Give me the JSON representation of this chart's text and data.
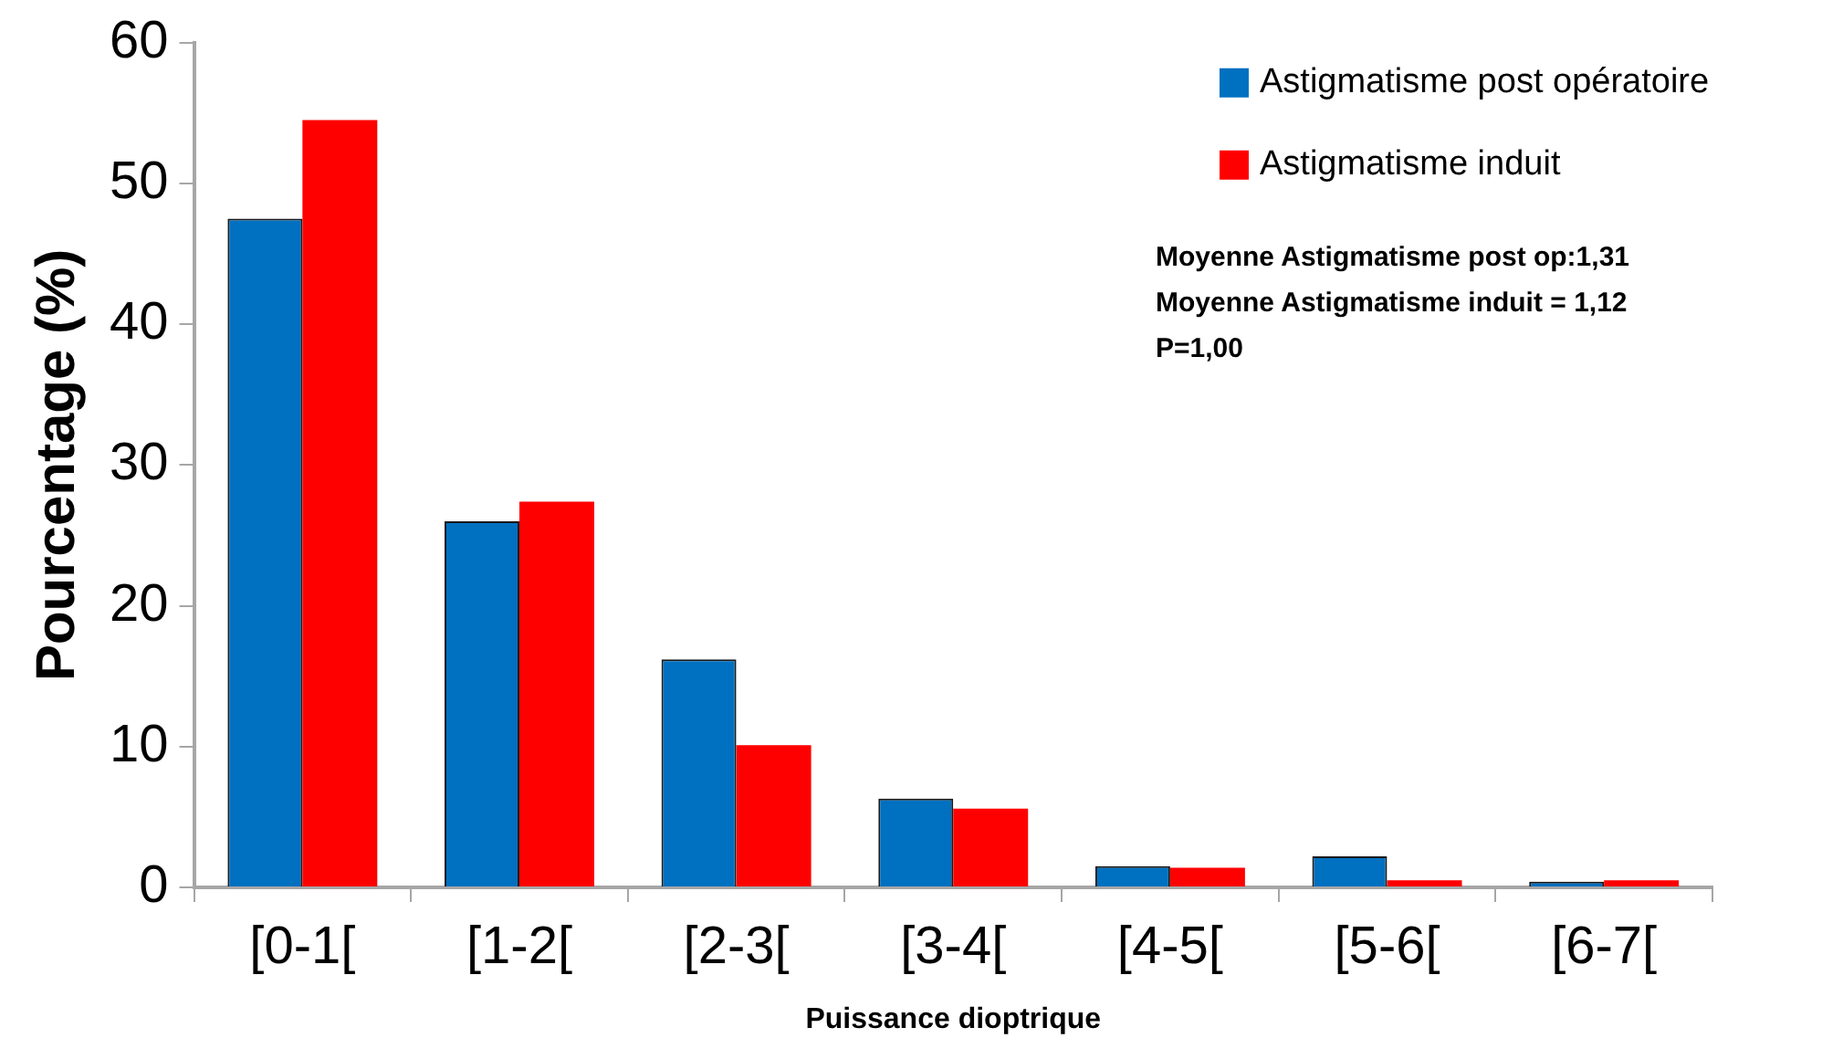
{
  "chart_data": {
    "type": "bar",
    "xlabel": "Puissance dioptrique",
    "ylabel": "Pourcentage (%)",
    "categories": [
      "[0-1[",
      "[1-2[",
      "[2-3[",
      "[3-4[",
      "[4-5[",
      "[5-6[",
      "[6-7["
    ],
    "series": [
      {
        "name": "Astigmatisme post opératoire",
        "color": "#0070c0",
        "values": [
          47.5,
          26.0,
          16.2,
          6.3,
          1.5,
          2.2,
          0.4
        ]
      },
      {
        "name": "Astigmatisme induit",
        "color": "#ff0000",
        "values": [
          54.5,
          27.4,
          10.1,
          5.6,
          1.4,
          0.5,
          0.5
        ]
      }
    ],
    "ylim": [
      0,
      60
    ],
    "yticks": [
      0,
      10,
      20,
      30,
      40,
      50,
      60
    ],
    "grid": false,
    "legend": "top right",
    "annotations": [
      "Moyenne Astigmatisme post op:1,31",
      "Moyenne Astigmatisme induit = 1,12",
      "P=1,00"
    ]
  }
}
